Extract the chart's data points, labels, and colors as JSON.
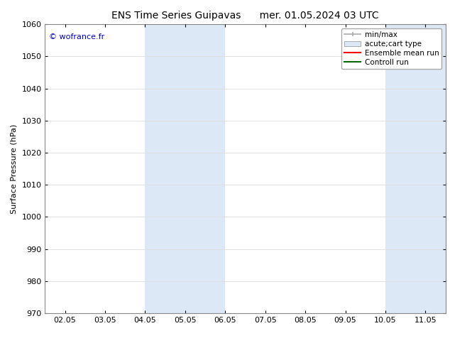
{
  "title_left": "ENS Time Series Guipavas",
  "title_right": "mer. 01.05.2024 03 UTC",
  "ylabel": "Surface Pressure (hPa)",
  "ylim": [
    970,
    1060
  ],
  "yticks": [
    970,
    980,
    990,
    1000,
    1010,
    1020,
    1030,
    1040,
    1050,
    1060
  ],
  "xtick_labels": [
    "02.05",
    "03.05",
    "04.05",
    "05.05",
    "06.05",
    "07.05",
    "08.05",
    "09.05",
    "10.05",
    "11.05"
  ],
  "xtick_positions": [
    0,
    1,
    2,
    3,
    4,
    5,
    6,
    7,
    8,
    9
  ],
  "xlim": [
    -0.5,
    9.5
  ],
  "shaded_regions": [
    {
      "x_start": 2,
      "x_end": 4,
      "color": "#dce8f5"
    },
    {
      "x_start": 8,
      "x_end": 9.5,
      "color": "#dce8f5"
    }
  ],
  "watermark_text": "© wofrance.fr",
  "watermark_color": "#0000cc",
  "background_color": "#ffffff",
  "legend_items": [
    {
      "label": "min/max",
      "type": "minmax",
      "color": "#aaaaaa"
    },
    {
      "label": "acute;cart type",
      "type": "box",
      "facecolor": "#dce8f5",
      "edgecolor": "#aaaaaa"
    },
    {
      "label": "Ensemble mean run",
      "type": "line",
      "color": "#ff0000"
    },
    {
      "label": "Controll run",
      "type": "line",
      "color": "#006600"
    }
  ],
  "grid_color": "#dddddd",
  "title_fontsize": 10,
  "label_fontsize": 8,
  "tick_fontsize": 8,
  "legend_fontsize": 7.5
}
